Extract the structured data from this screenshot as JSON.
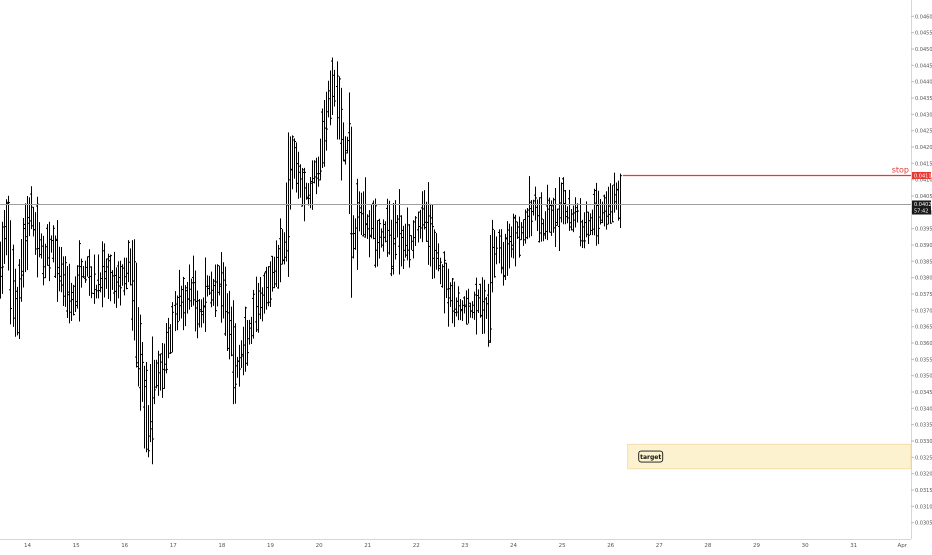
{
  "chart_data": {
    "type": "ohlc",
    "title": "",
    "xlabel": "",
    "ylabel": "",
    "y_range": [
      0.03,
      0.0465
    ],
    "x_ticks": [
      {
        "label": "14",
        "day": 14
      },
      {
        "label": "15",
        "day": 15
      },
      {
        "label": "16",
        "day": 16
      },
      {
        "label": "17",
        "day": 17
      },
      {
        "label": "18",
        "day": 18
      },
      {
        "label": "19",
        "day": 19
      },
      {
        "label": "20",
        "day": 20
      },
      {
        "label": "21",
        "day": 21
      },
      {
        "label": "22",
        "day": 22
      },
      {
        "label": "23",
        "day": 23
      },
      {
        "label": "24",
        "day": 24
      },
      {
        "label": "25",
        "day": 25
      },
      {
        "label": "26",
        "day": 26
      },
      {
        "label": "27",
        "day": 27
      },
      {
        "label": "28",
        "day": 28
      },
      {
        "label": "29",
        "day": 29
      },
      {
        "label": "30",
        "day": 30
      },
      {
        "label": "31",
        "day": 31
      },
      {
        "label": "Apr",
        "day": 32
      }
    ],
    "y_ticks": [
      "0.04600",
      "0.04550",
      "0.04500",
      "0.04450",
      "0.04400",
      "0.04350",
      "0.04300",
      "0.04250",
      "0.04200",
      "0.04150",
      "0.04100",
      "0.04050",
      "0.04000",
      "0.03950",
      "0.03900",
      "0.03850",
      "0.03800",
      "0.03750",
      "0.03700",
      "0.03650",
      "0.03600",
      "0.03550",
      "0.03500",
      "0.03450",
      "0.03400",
      "0.03350",
      "0.03300",
      "0.03250",
      "0.03200",
      "0.03150",
      "0.03100",
      "0.03050"
    ],
    "price_path": [
      [
        13.4,
        0.0381
      ],
      [
        13.6,
        0.0395
      ],
      [
        13.75,
        0.0365
      ],
      [
        13.9,
        0.0388
      ],
      [
        14.05,
        0.04
      ],
      [
        14.2,
        0.0392
      ],
      [
        14.35,
        0.0386
      ],
      [
        14.5,
        0.039
      ],
      [
        14.65,
        0.0383
      ],
      [
        14.8,
        0.0378
      ],
      [
        14.95,
        0.0372
      ],
      [
        15.1,
        0.0381
      ],
      [
        15.25,
        0.0383
      ],
      [
        15.4,
        0.0376
      ],
      [
        15.55,
        0.0382
      ],
      [
        15.7,
        0.038
      ],
      [
        15.85,
        0.0379
      ],
      [
        16.0,
        0.0381
      ],
      [
        16.1,
        0.0384
      ],
      [
        16.2,
        0.0373
      ],
      [
        16.3,
        0.0357
      ],
      [
        16.4,
        0.0345
      ],
      [
        16.5,
        0.0333
      ],
      [
        16.6,
        0.0348
      ],
      [
        16.7,
        0.0352
      ],
      [
        16.8,
        0.0351
      ],
      [
        16.9,
        0.0361
      ],
      [
        17.0,
        0.0366
      ],
      [
        17.1,
        0.0373
      ],
      [
        17.2,
        0.0372
      ],
      [
        17.3,
        0.0374
      ],
      [
        17.4,
        0.0377
      ],
      [
        17.5,
        0.0369
      ],
      [
        17.6,
        0.0369
      ],
      [
        17.7,
        0.0378
      ],
      [
        17.8,
        0.0376
      ],
      [
        17.9,
        0.0378
      ],
      [
        18.0,
        0.0376
      ],
      [
        18.1,
        0.0367
      ],
      [
        18.2,
        0.0363
      ],
      [
        18.3,
        0.0351
      ],
      [
        18.4,
        0.0356
      ],
      [
        18.5,
        0.036
      ],
      [
        18.6,
        0.0363
      ],
      [
        18.7,
        0.0369
      ],
      [
        18.8,
        0.0372
      ],
      [
        18.9,
        0.0375
      ],
      [
        19.0,
        0.0379
      ],
      [
        19.1,
        0.0383
      ],
      [
        19.2,
        0.0388
      ],
      [
        19.3,
        0.0391
      ],
      [
        19.4,
        0.0413
      ],
      [
        19.5,
        0.0415
      ],
      [
        19.6,
        0.0411
      ],
      [
        19.7,
        0.0406
      ],
      [
        19.8,
        0.0406
      ],
      [
        19.9,
        0.0413
      ],
      [
        20.0,
        0.0413
      ],
      [
        20.1,
        0.0423
      ],
      [
        20.2,
        0.0435
      ],
      [
        20.3,
        0.044
      ],
      [
        20.4,
        0.0429
      ],
      [
        20.5,
        0.0418
      ],
      [
        20.6,
        0.0421
      ],
      [
        20.7,
        0.039
      ],
      [
        20.8,
        0.0398
      ],
      [
        20.9,
        0.0401
      ],
      [
        21.0,
        0.0395
      ],
      [
        21.1,
        0.04
      ],
      [
        21.2,
        0.0391
      ],
      [
        21.3,
        0.0393
      ],
      [
        21.4,
        0.0395
      ],
      [
        21.5,
        0.0389
      ],
      [
        21.6,
        0.0397
      ],
      [
        21.7,
        0.039
      ],
      [
        21.8,
        0.0394
      ],
      [
        21.9,
        0.0391
      ],
      [
        22.0,
        0.0396
      ],
      [
        22.1,
        0.0399
      ],
      [
        22.2,
        0.0398
      ],
      [
        22.3,
        0.0392
      ],
      [
        22.4,
        0.0387
      ],
      [
        22.5,
        0.0382
      ],
      [
        22.6,
        0.0379
      ],
      [
        22.7,
        0.0375
      ],
      [
        22.8,
        0.0371
      ],
      [
        22.9,
        0.037
      ],
      [
        23.0,
        0.0371
      ],
      [
        23.1,
        0.037
      ],
      [
        23.2,
        0.037
      ],
      [
        23.3,
        0.0373
      ],
      [
        23.4,
        0.037
      ],
      [
        23.5,
        0.0371
      ],
      [
        23.6,
        0.0389
      ],
      [
        23.7,
        0.0388
      ],
      [
        23.8,
        0.0386
      ],
      [
        23.9,
        0.0391
      ],
      [
        24.0,
        0.0393
      ],
      [
        24.1,
        0.0395
      ],
      [
        24.2,
        0.0394
      ],
      [
        24.3,
        0.0398
      ],
      [
        24.4,
        0.0401
      ],
      [
        24.5,
        0.04
      ],
      [
        24.6,
        0.0394
      ],
      [
        24.7,
        0.0397
      ],
      [
        24.8,
        0.0399
      ],
      [
        24.9,
        0.0398
      ],
      [
        25.0,
        0.0402
      ],
      [
        25.1,
        0.04
      ],
      [
        25.2,
        0.0397
      ],
      [
        25.3,
        0.0401
      ],
      [
        25.4,
        0.0393
      ],
      [
        25.5,
        0.0397
      ],
      [
        25.6,
        0.0397
      ],
      [
        25.7,
        0.0399
      ],
      [
        25.8,
        0.0401
      ],
      [
        25.9,
        0.04
      ],
      [
        26.0,
        0.0404
      ],
      [
        26.1,
        0.0405
      ],
      [
        26.2,
        0.0403
      ]
    ],
    "current_price_label": "0.04025",
    "countdown_label": "57:42",
    "stop": {
      "label": "stop",
      "price_label": "0.04115",
      "value": 0.04115,
      "from_day": 26.25,
      "color": "#e53935"
    },
    "target_zone": {
      "label": "target",
      "low": 0.03215,
      "high": 0.0329,
      "from_day": 26.35,
      "fill": "#fdf2cf",
      "border": "#f0d8a0"
    },
    "colors": {
      "bar": "#000000",
      "axis_text": "#555555",
      "current_line": "#9e9e9e",
      "current_label_bg": "#1a1a1a",
      "current_label_text": "#ffffff"
    }
  }
}
